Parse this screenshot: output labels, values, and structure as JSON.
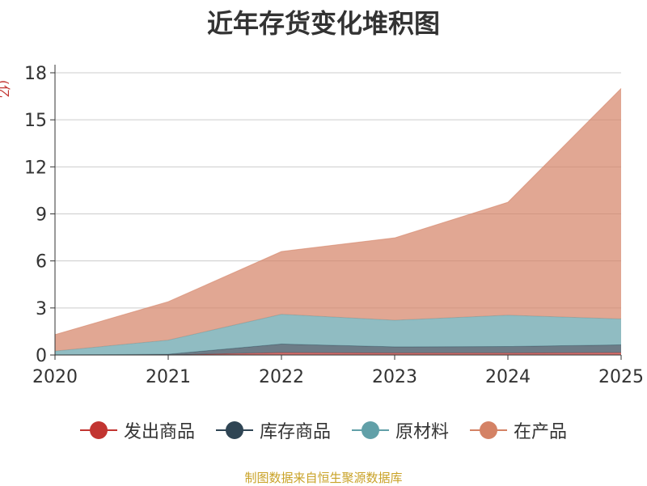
{
  "chart_data": {
    "type": "area",
    "stacked": true,
    "title": "近年存货变化堆积图",
    "ylabel": "(亿元)",
    "xlabel": "",
    "categories": [
      "2020",
      "2021",
      "2022",
      "2023",
      "2024",
      "2025"
    ],
    "ylim": [
      0,
      18
    ],
    "yticks": [
      0,
      3,
      6,
      9,
      12,
      15,
      18
    ],
    "grid": true,
    "legend_position": "bottom",
    "series": [
      {
        "name": "发出商品",
        "color": "#c23531",
        "values": [
          0.0,
          0.0,
          0.15,
          0.12,
          0.12,
          0.15
        ]
      },
      {
        "name": "库存商品",
        "color": "#2f4554",
        "values": [
          0.0,
          0.05,
          0.55,
          0.4,
          0.42,
          0.5
        ]
      },
      {
        "name": "原材料",
        "color": "#61a0a8",
        "values": [
          0.25,
          0.9,
          1.9,
          1.7,
          2.0,
          1.65
        ]
      },
      {
        "name": "在产品",
        "color": "#d48265",
        "values": [
          1.05,
          2.45,
          4.0,
          5.25,
          7.2,
          14.7
        ]
      }
    ]
  },
  "footer": {
    "source": "制图数据来自恒生聚源数据库"
  }
}
